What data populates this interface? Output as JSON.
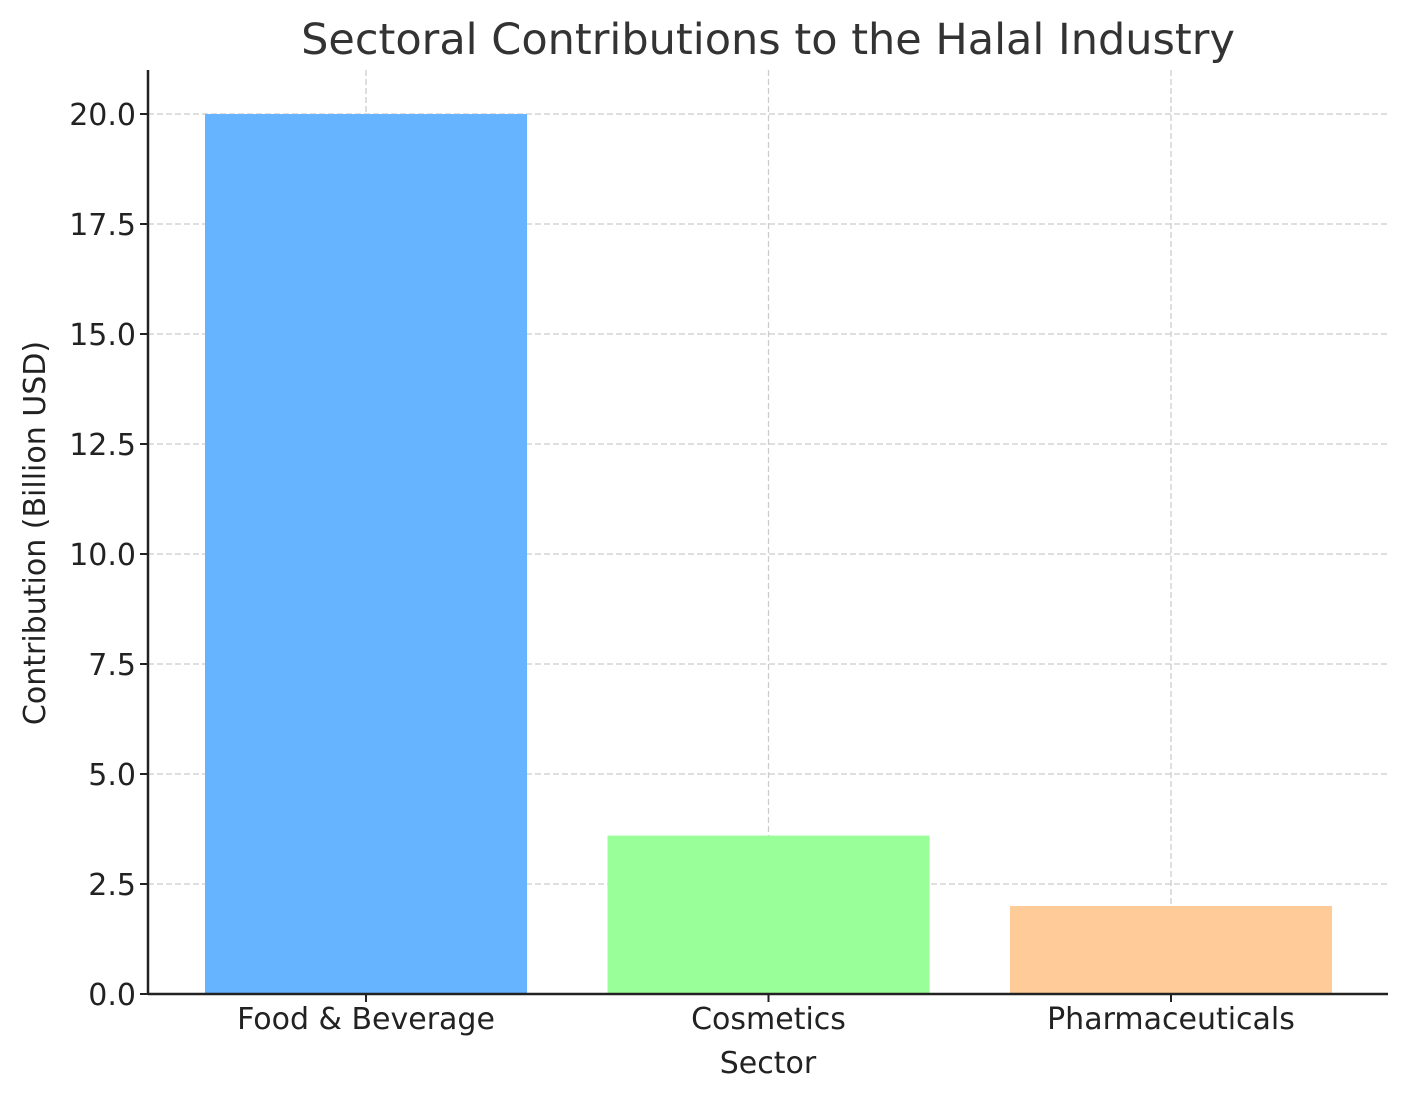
{
  "chart_data": {
    "type": "bar",
    "title": "Sectoral Contributions to the Halal Industry",
    "xlabel": "Sector",
    "ylabel": "Contribution (Billion USD)",
    "categories": [
      "Food & Beverage",
      "Cosmetics",
      "Pharmaceuticals"
    ],
    "values": [
      20.0,
      3.6,
      2.0
    ],
    "colors": [
      "#66b3ff",
      "#99ff99",
      "#ffcc99"
    ],
    "ylim": [
      0,
      21
    ],
    "yticks": [
      "0.0",
      "2.5",
      "5.0",
      "7.5",
      "10.0",
      "12.5",
      "15.0",
      "17.5",
      "20.0"
    ],
    "grid": true,
    "legend": "none"
  }
}
